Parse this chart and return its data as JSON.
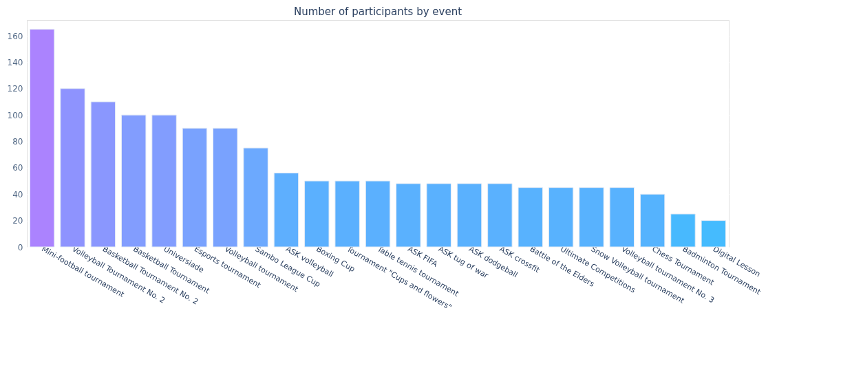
{
  "chart_data": {
    "type": "bar",
    "title": "Number of participants by event",
    "categories": [
      "Mini-football tournament",
      "Volleyball Tournament No. 2",
      "Basketball Tournament No. 2",
      "Basketball Tournament",
      "Universiade",
      "Esports tournament",
      "Volleyball tournament",
      "Sambo League Cup",
      "ASK volleyball",
      "Boxing Cup",
      "Tournament \"Cups and flowers\"",
      "Table tennis tournament",
      "ASK FIFA",
      "ASK tug of war",
      "ASK dodgeball",
      "ASK crossfit",
      "Battle of the Elders",
      "Ultimate Competitions",
      "Snow Volleyball tournament",
      "Volleyball tournament No. 3",
      "Chess Tournament",
      "Badminton Tournament",
      "Digital Lesson"
    ],
    "values": [
      165,
      120,
      110,
      100,
      100,
      90,
      90,
      75,
      56,
      50,
      50,
      50,
      48,
      48,
      48,
      48,
      45,
      45,
      45,
      45,
      40,
      25,
      20
    ],
    "colors": [
      "#ab83fe",
      "#8e93fe",
      "#8a97fe",
      "#829dfe",
      "#829dfe",
      "#79a2fe",
      "#79a2fe",
      "#6ca9fe",
      "#5eaffe",
      "#5bb0fe",
      "#5bb0fe",
      "#5bb0fe",
      "#5ab1fe",
      "#5ab1fe",
      "#5ab1fe",
      "#5ab1fe",
      "#58b2fe",
      "#58b2fe",
      "#58b2fe",
      "#58b2fe",
      "#55b3fe",
      "#48b9fe",
      "#45bbfe"
    ],
    "ylim": [
      0,
      172
    ],
    "yticks": [
      0,
      20,
      40,
      60,
      80,
      100,
      120,
      140,
      160
    ],
    "grid": "y"
  }
}
